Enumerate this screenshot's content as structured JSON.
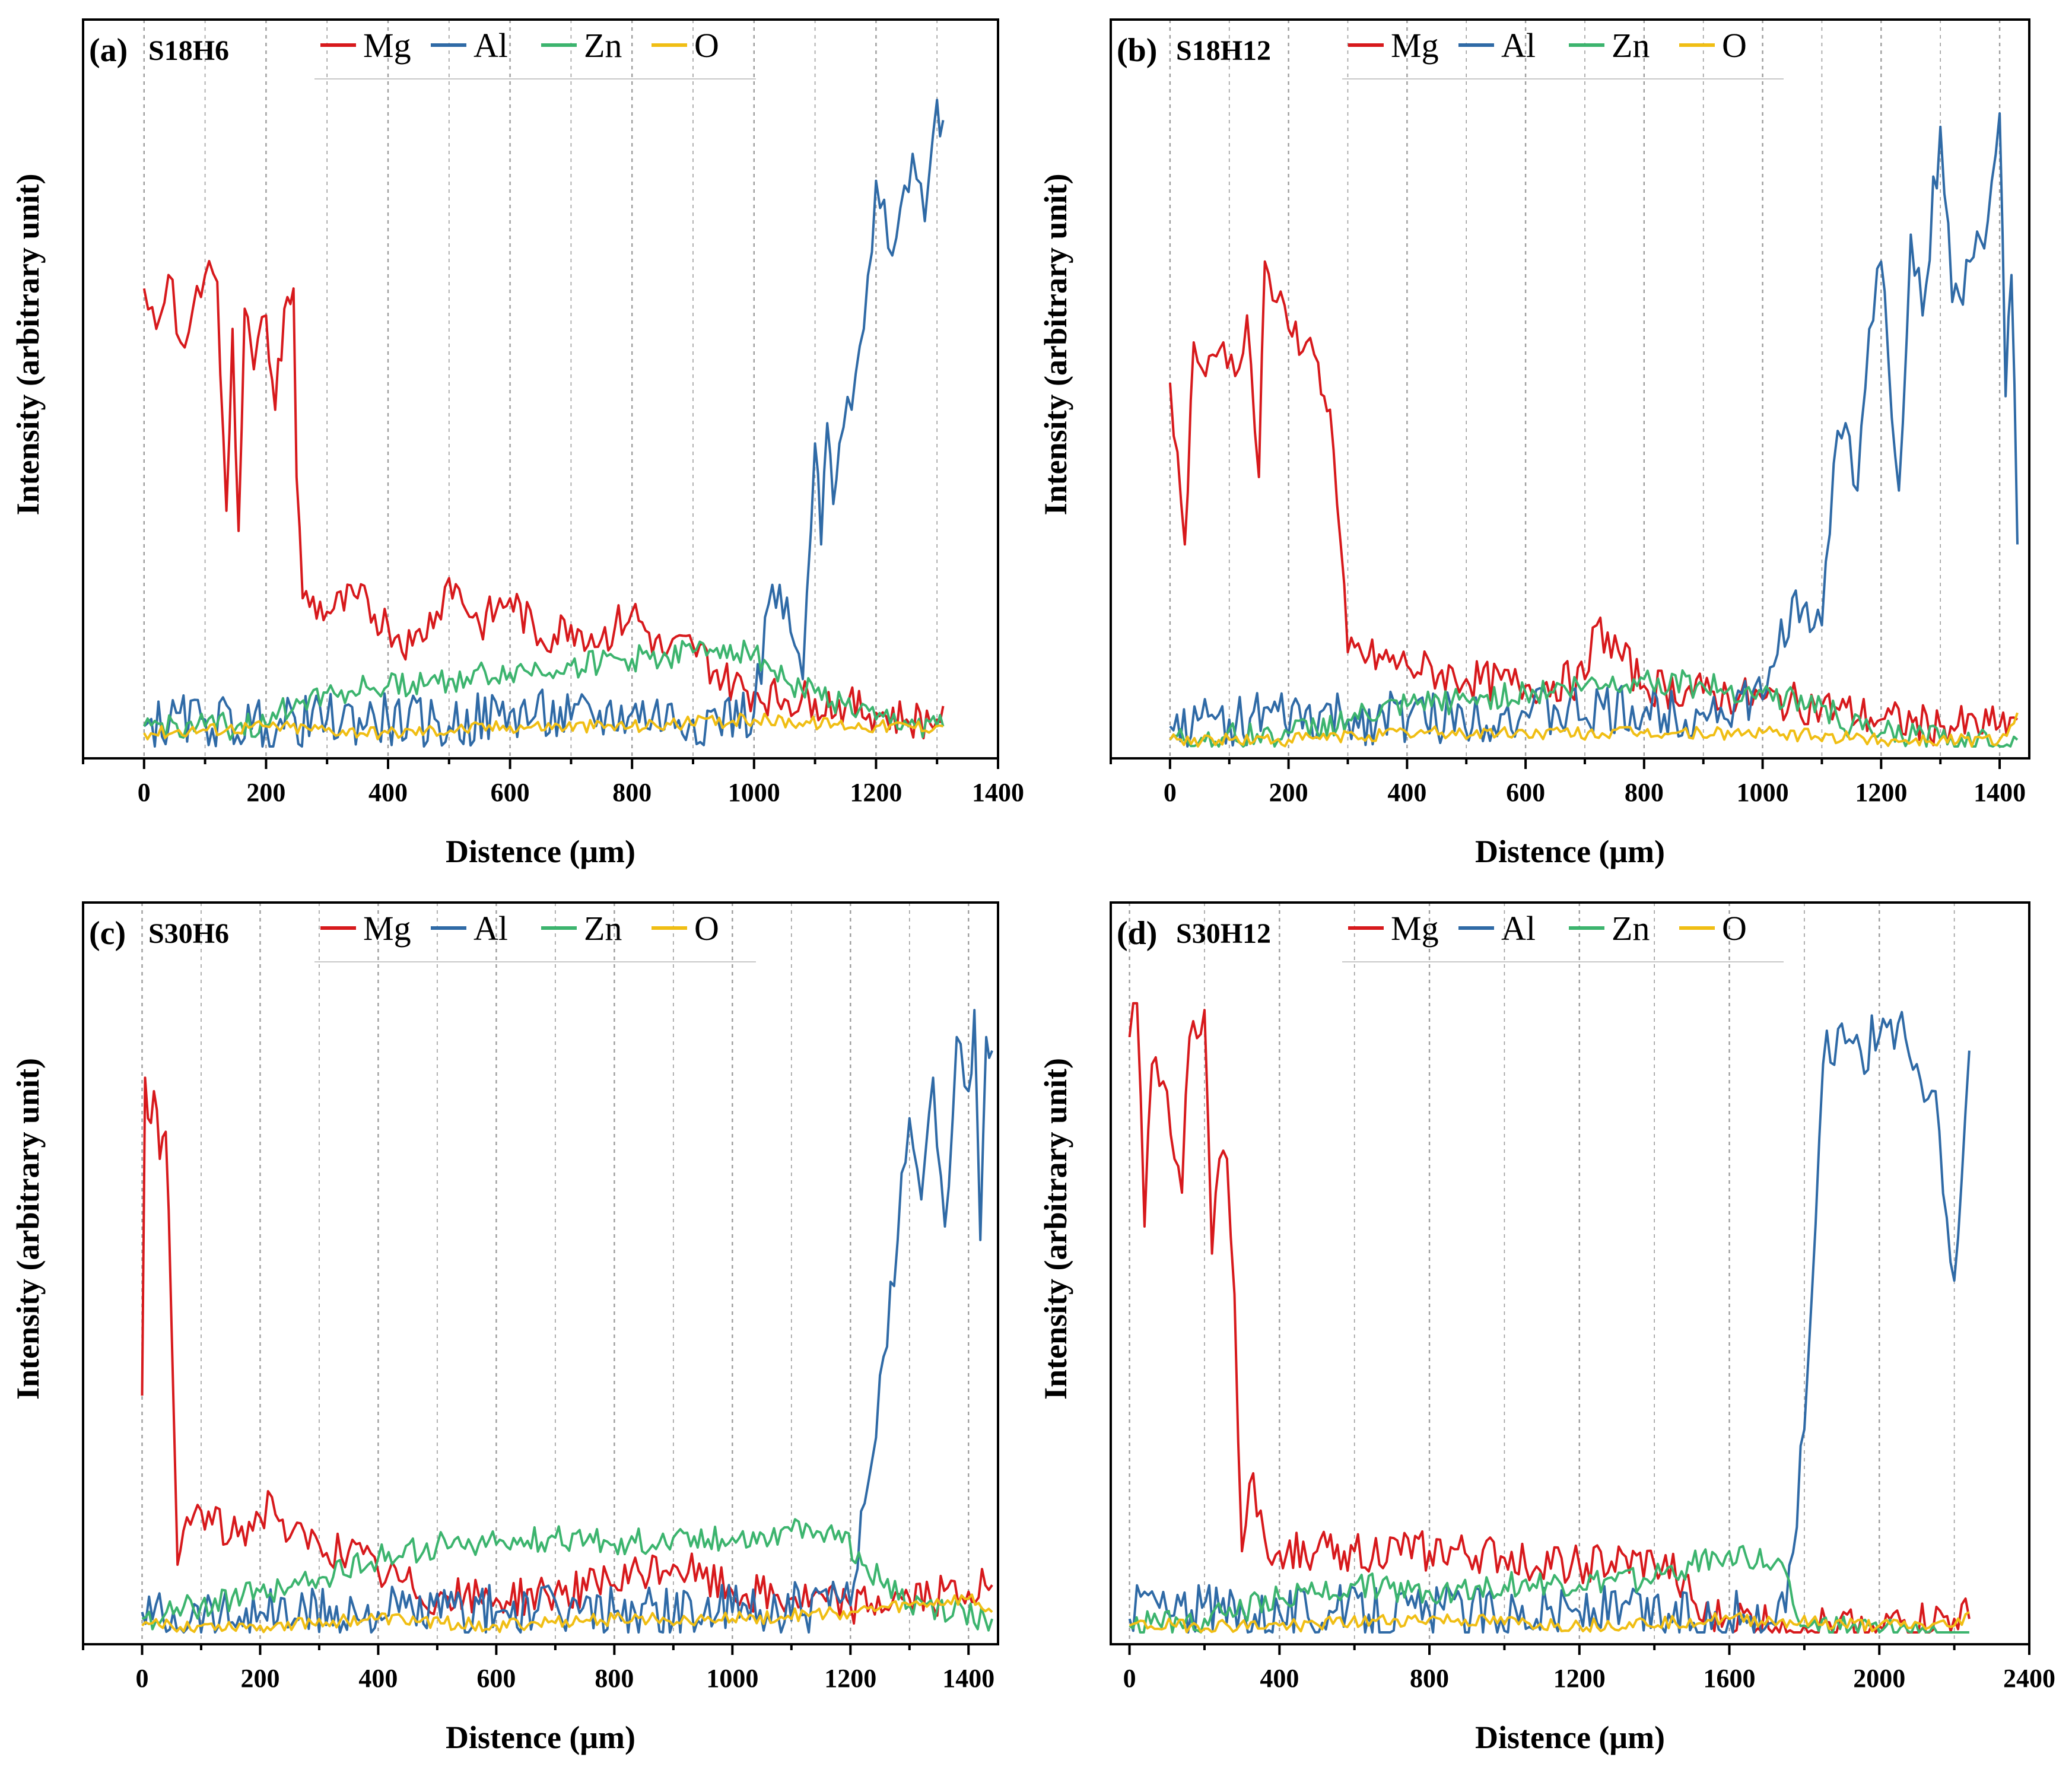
{
  "figure": {
    "background": "#ffffff",
    "axis_color": "#000000",
    "grid_color": "#8c8c8c"
  },
  "legend": {
    "entries": [
      {
        "label": "Mg",
        "color": "#d7191c"
      },
      {
        "label": "Al",
        "color": "#2f6aa6"
      },
      {
        "label": "Zn",
        "color": "#3cb46e"
      },
      {
        "label": "O",
        "color": "#f0be14"
      }
    ]
  },
  "chart_data": [
    {
      "type": "line",
      "panel_label": "(a)",
      "title": "S18H6",
      "xlabel": "Distence (μm)",
      "ylabel": "Intensity (arbitrary unit)",
      "xlim": [
        -100,
        1400
      ],
      "ylim": [
        0,
        100
      ],
      "xticks": [
        0,
        200,
        400,
        600,
        800,
        1000,
        1200,
        1400
      ],
      "grid": "vertical dotted",
      "legend_position": "top",
      "series": [
        {
          "name": "Mg",
          "x": [
            0,
            20,
            40,
            60,
            80,
            100,
            120,
            135,
            145,
            155,
            165,
            180,
            200,
            215,
            230,
            245,
            250,
            260,
            300,
            350,
            400,
            440,
            480,
            500,
            550,
            600,
            650,
            700,
            750,
            800,
            850,
            900,
            950,
            1000,
            1050,
            1100,
            1150,
            1200,
            1250,
            1300,
            1310
          ],
          "values": [
            68,
            62,
            70,
            60,
            65,
            70,
            69,
            35,
            62,
            32,
            65,
            56,
            64,
            50,
            65,
            68,
            40,
            22,
            20,
            22,
            18,
            15,
            20,
            25,
            18,
            22,
            16,
            18,
            16,
            20,
            14,
            15,
            10,
            8,
            7,
            7,
            6,
            5,
            4,
            4,
            6
          ]
        },
        {
          "name": "Al",
          "x": [
            0,
            100,
            200,
            300,
            400,
            500,
            600,
            700,
            800,
            900,
            1000,
            1030,
            1060,
            1080,
            1100,
            1110,
            1120,
            1130,
            1140,
            1160,
            1180,
            1200,
            1220,
            1240,
            1260,
            1280,
            1300,
            1310
          ],
          "values": [
            3,
            4,
            3,
            4,
            4,
            3,
            5,
            4,
            5,
            4,
            5,
            24,
            17,
            10,
            45,
            30,
            48,
            36,
            45,
            50,
            62,
            84,
            74,
            80,
            88,
            78,
            96,
            93
          ]
        },
        {
          "name": "Zn",
          "x": [
            0,
            100,
            200,
            250,
            300,
            400,
            500,
            600,
            700,
            800,
            900,
            950,
            1000,
            1050,
            1100,
            1150,
            1200,
            1300,
            1310
          ],
          "values": [
            3,
            3,
            3,
            7,
            8,
            9,
            10,
            11,
            12,
            13,
            14,
            15,
            14,
            10,
            8,
            6,
            4,
            3,
            3
          ]
        },
        {
          "name": "O",
          "x": [
            0,
            200,
            400,
            600,
            800,
            1000,
            1200,
            1310
          ],
          "values": [
            2,
            3,
            2,
            3,
            3,
            4,
            3,
            3
          ]
        }
      ]
    },
    {
      "type": "line",
      "panel_label": "(b)",
      "title": "S18H12",
      "xlabel": "Distence (μm)",
      "ylabel": "Intensity (arbitrary unit)",
      "xlim": [
        -100,
        1450
      ],
      "ylim": [
        0,
        100
      ],
      "xticks": [
        0,
        200,
        400,
        600,
        800,
        1000,
        1200,
        1400
      ],
      "grid": "vertical dotted",
      "legend_position": "top",
      "series": [
        {
          "name": "Mg",
          "x": [
            0,
            25,
            40,
            60,
            90,
            110,
            130,
            150,
            160,
            180,
            200,
            230,
            250,
            260,
            270,
            300,
            400,
            500,
            600,
            700,
            720,
            800,
            900,
            1000,
            1100,
            1200,
            1300,
            1400,
            1430
          ],
          "values": [
            54,
            30,
            60,
            55,
            60,
            55,
            64,
            40,
            72,
            66,
            62,
            60,
            57,
            52,
            50,
            14,
            12,
            10,
            9,
            10,
            18,
            9,
            8,
            7,
            6,
            4,
            3,
            3,
            4
          ]
        },
        {
          "name": "Al",
          "x": [
            0,
            100,
            300,
            600,
            900,
            1000,
            1050,
            1080,
            1100,
            1120,
            1140,
            1160,
            1180,
            1200,
            1230,
            1250,
            1270,
            1300,
            1320,
            1350,
            1380,
            1400,
            1410,
            1420,
            1430
          ],
          "values": [
            3,
            4,
            4,
            5,
            5,
            7,
            22,
            17,
            18,
            42,
            48,
            38,
            62,
            72,
            38,
            76,
            64,
            92,
            66,
            72,
            78,
            94,
            52,
            70,
            30
          ]
        },
        {
          "name": "Zn",
          "x": [
            0,
            200,
            300,
            400,
            500,
            600,
            700,
            800,
            900,
            1000,
            1100,
            1150,
            1200,
            1300,
            1430
          ],
          "values": [
            1,
            2,
            4,
            6,
            7,
            8,
            9,
            10,
            9,
            8,
            6,
            3,
            2,
            1,
            1
          ]
        },
        {
          "name": "O",
          "x": [
            0,
            200,
            400,
            600,
            800,
            1000,
            1200,
            1400,
            1430
          ],
          "values": [
            1,
            1,
            2,
            2,
            2,
            2,
            1,
            1,
            5
          ]
        }
      ]
    },
    {
      "type": "line",
      "panel_label": "(c)",
      "title": "S30H6",
      "xlabel": "Distence (μm)",
      "ylabel": "Intensity (arbitrary unit)",
      "xlim": [
        -100,
        1450
      ],
      "ylim": [
        0,
        100
      ],
      "xticks": [
        0,
        200,
        400,
        600,
        800,
        1000,
        1200,
        1400
      ],
      "grid": "vertical dotted",
      "legend_position": "top",
      "series": [
        {
          "name": "Mg",
          "x": [
            0,
            5,
            10,
            20,
            30,
            40,
            50,
            60,
            70,
            100,
            150,
            200,
            220,
            250,
            300,
            350,
            400,
            500,
            600,
            700,
            800,
            900,
            950,
            1000,
            1100,
            1200,
            1300,
            1400,
            1440
          ],
          "values": [
            35,
            82,
            76,
            80,
            70,
            74,
            45,
            10,
            15,
            18,
            14,
            17,
            20,
            14,
            13,
            12,
            9,
            5,
            5,
            6,
            7,
            10,
            8,
            6,
            5,
            4,
            5,
            6,
            7
          ]
        },
        {
          "name": "Al",
          "x": [
            0,
            200,
            400,
            600,
            800,
            1000,
            1200,
            1230,
            1250,
            1280,
            1300,
            1320,
            1340,
            1360,
            1380,
            1400,
            1410,
            1420,
            1430,
            1440
          ],
          "values": [
            3,
            3,
            3,
            3,
            3,
            3,
            4,
            22,
            38,
            58,
            76,
            64,
            82,
            60,
            88,
            80,
            92,
            58,
            88,
            86
          ]
        },
        {
          "name": "Zn",
          "x": [
            0,
            100,
            200,
            300,
            400,
            500,
            600,
            700,
            800,
            900,
            1000,
            1100,
            1180,
            1220,
            1300,
            1440
          ],
          "values": [
            2,
            4,
            6,
            8,
            11,
            13,
            13,
            14,
            13,
            14,
            14,
            15,
            15,
            10,
            4,
            2
          ]
        },
        {
          "name": "O",
          "x": [
            0,
            200,
            400,
            600,
            800,
            1000,
            1200,
            1300,
            1400,
            1440
          ],
          "values": [
            1,
            1,
            2,
            1,
            2,
            2,
            3,
            4,
            5,
            3
          ]
        }
      ]
    },
    {
      "type": "line",
      "panel_label": "(d)",
      "title": "S30H12",
      "xlabel": "Distence (μm)",
      "ylabel": "Intensity (arbitrary unit)",
      "xlim": [
        -50,
        2400
      ],
      "ylim": [
        0,
        100
      ],
      "xticks": [
        0,
        400,
        800,
        1200,
        1600,
        2000,
        2400
      ],
      "grid": "vertical dotted",
      "legend_position": "top",
      "series": [
        {
          "name": "Mg",
          "x": [
            0,
            20,
            40,
            60,
            100,
            140,
            160,
            200,
            220,
            240,
            260,
            280,
            300,
            320,
            350,
            380,
            400,
            500,
            600,
            800,
            1000,
            1200,
            1400,
            1480,
            1520,
            1600,
            1800,
            2000,
            2200,
            2240
          ],
          "values": [
            88,
            93,
            60,
            84,
            80,
            65,
            88,
            92,
            56,
            70,
            70,
            50,
            12,
            22,
            18,
            10,
            12,
            12,
            12,
            12,
            11,
            10,
            10,
            8,
            2,
            2,
            1,
            1,
            2,
            2
          ]
        },
        {
          "name": "Al",
          "x": [
            0,
            40,
            100,
            400,
            800,
            1200,
            1600,
            1750,
            1800,
            1850,
            1900,
            1950,
            2000,
            2050,
            2100,
            2150,
            2200,
            2240
          ],
          "values": [
            2,
            6,
            3,
            3,
            3,
            3,
            2,
            3,
            30,
            84,
            90,
            86,
            88,
            90,
            84,
            80,
            52,
            86
          ]
        },
        {
          "name": "Zn",
          "x": [
            0,
            200,
            400,
            600,
            800,
            1000,
            1200,
            1400,
            1500,
            1600,
            1700,
            1750,
            1800,
            2000,
            2240
          ],
          "values": [
            1,
            2,
            5,
            7,
            6,
            7,
            7,
            8,
            10,
            12,
            10,
            9,
            1,
            0,
            0
          ]
        },
        {
          "name": "O",
          "x": [
            0,
            400,
            800,
            1200,
            1600,
            2000,
            2200,
            2240
          ],
          "values": [
            1,
            1,
            2,
            1,
            2,
            1,
            1,
            3
          ]
        }
      ]
    }
  ]
}
